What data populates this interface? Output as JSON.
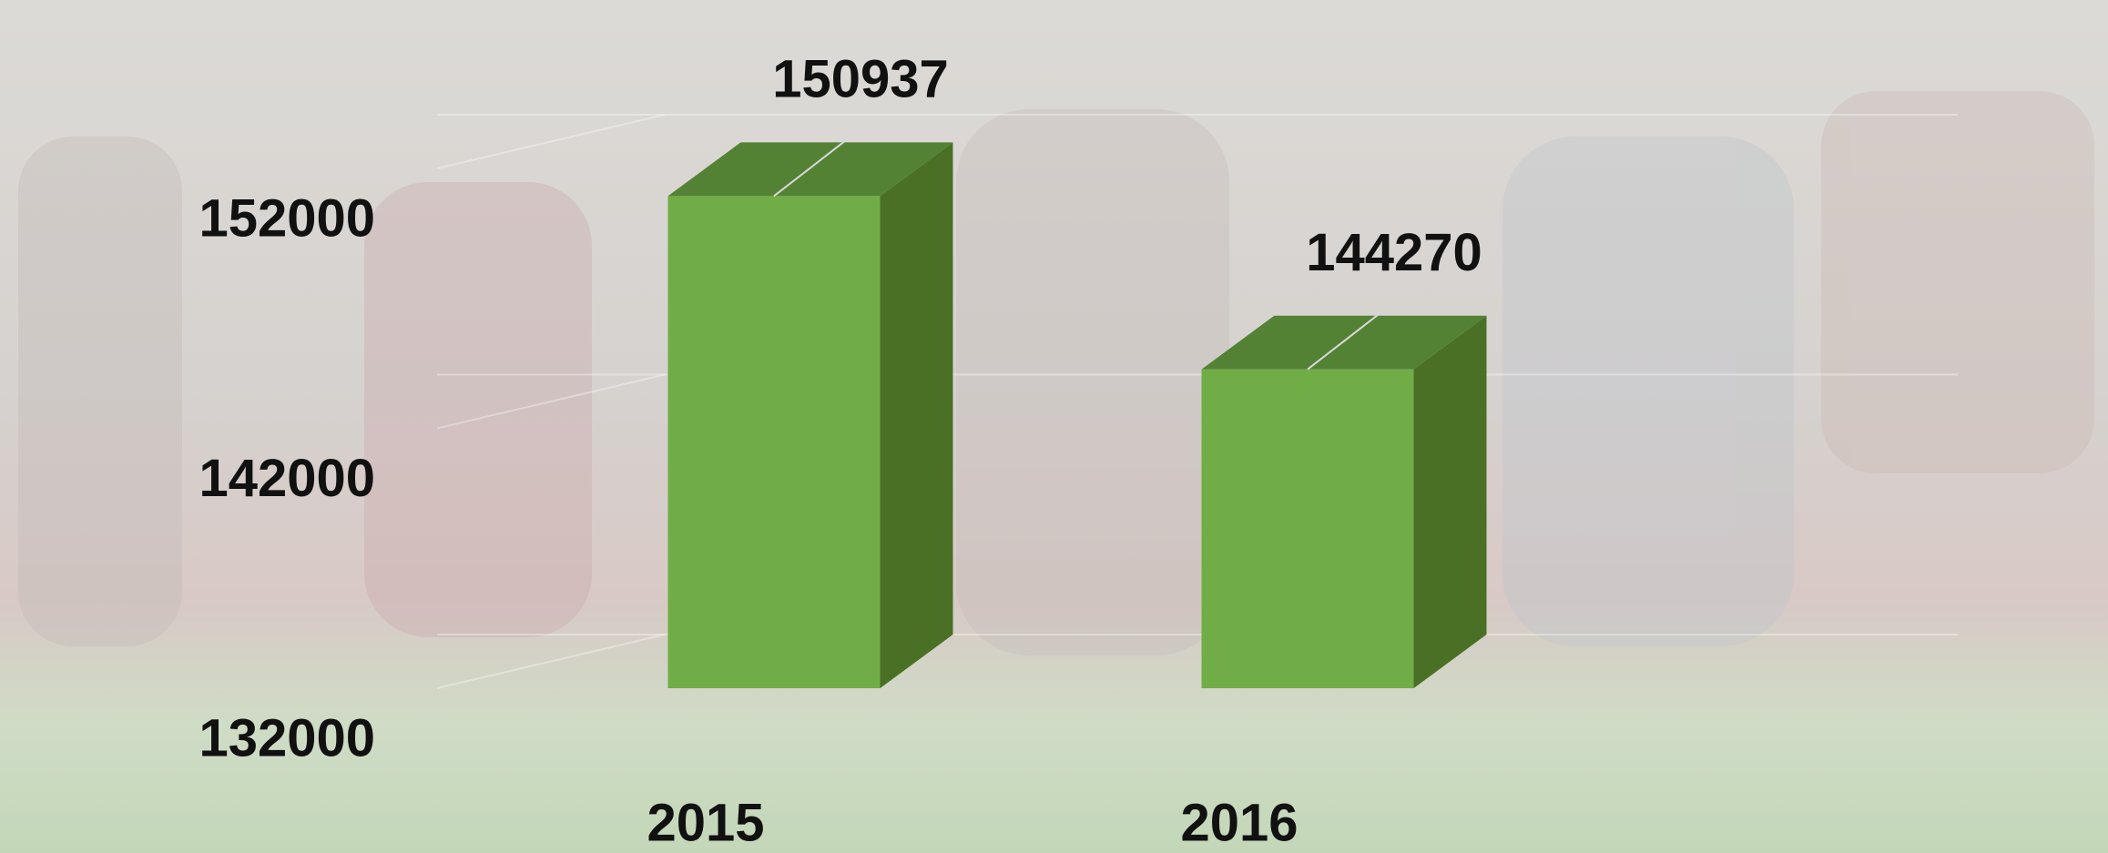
{
  "chart_data": {
    "type": "bar3d",
    "categories": [
      "2015",
      "2016"
    ],
    "values": [
      150937,
      144270
    ],
    "color": "#70ad47",
    "ylim": [
      132000,
      152000
    ],
    "yticks": [
      132000,
      142000,
      152000
    ],
    "grid": true
  }
}
